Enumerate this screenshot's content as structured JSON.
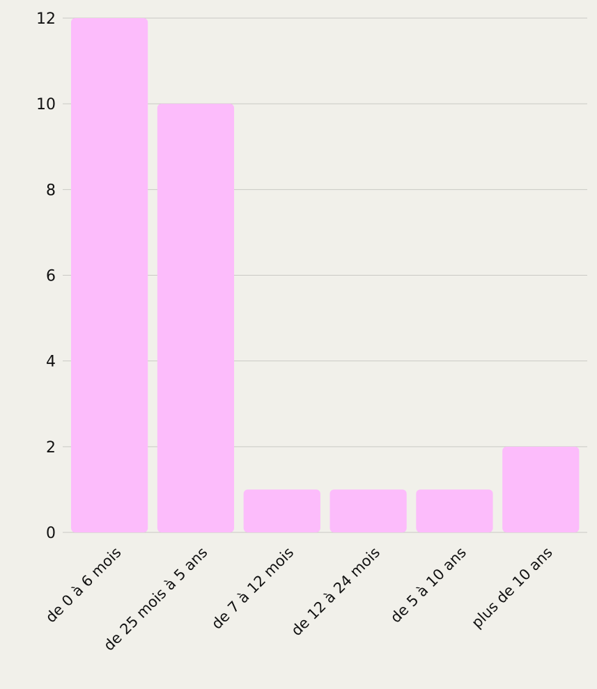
{
  "chart_data": {
    "type": "bar",
    "categories": [
      "de 0 à 6 mois",
      "de 25 mois à 5 ans",
      "de 7 à 12 mois",
      "de 12 à 24 mois",
      "de 5 à 10 ans",
      "plus de 10 ans"
    ],
    "values": [
      12,
      10,
      1,
      1,
      1,
      2
    ],
    "title": "",
    "xlabel": "",
    "ylabel": "",
    "ylim": [
      0,
      12
    ],
    "yticks": [
      "0",
      "2",
      "4",
      "6",
      "8",
      "10",
      "12"
    ],
    "grid": true,
    "legend": "none",
    "bar_color": "#fcbcfb",
    "background_color": "#f1f0ea",
    "grid_color": "#c9c9c4"
  }
}
